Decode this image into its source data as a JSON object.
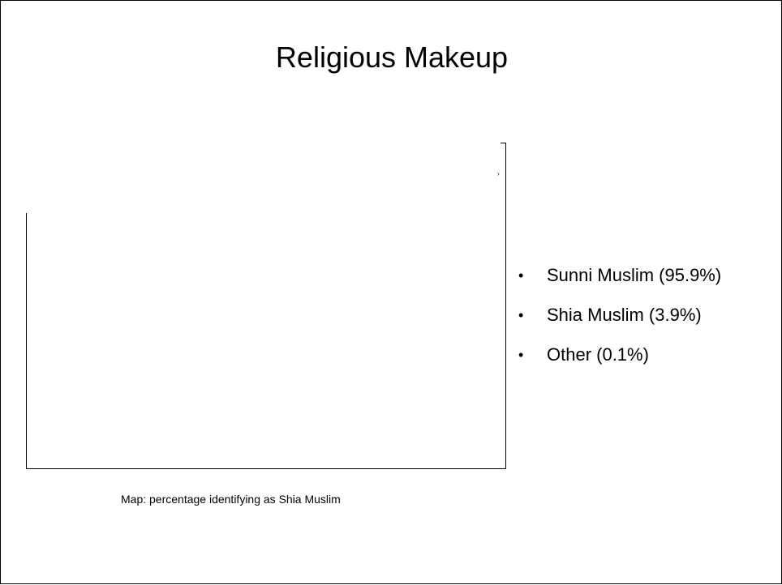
{
  "slide": {
    "title": "Religious Makeup",
    "map_caption": "Map: percentage identifying as Shia Muslim",
    "bullets": [
      {
        "label": "Sunni Muslim (95.9%)"
      },
      {
        "label": "Shia Muslim (3.9%)"
      },
      {
        "label": "Other (0.1%)"
      }
    ]
  }
}
